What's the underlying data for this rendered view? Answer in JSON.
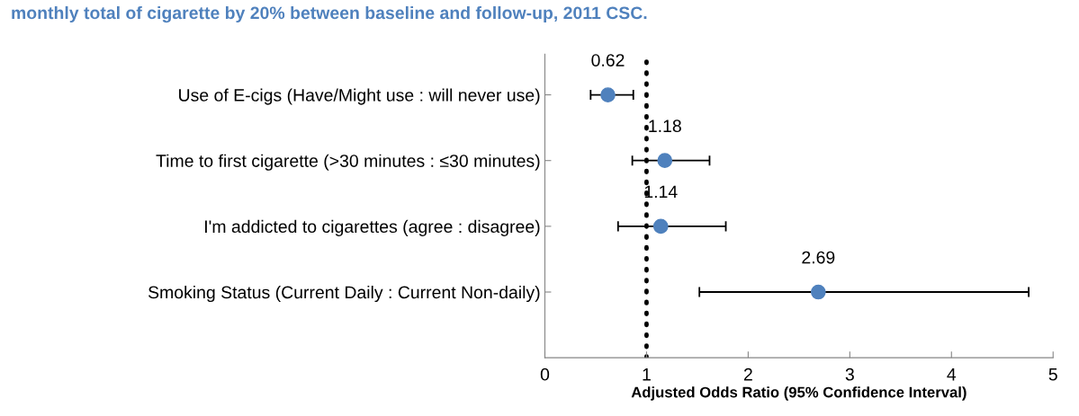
{
  "chart_data": {
    "type": "scatter",
    "orientation": "horizontal",
    "title": "monthly total of cigarette by 20% between baseline and follow-up, 2011 CSC.",
    "xlabel": "Adjusted Odds Ratio (95% Confidence Interval)",
    "categories": [
      "Use of E-cigs (Have/Might use : will never use)",
      "Time to first cigarette (>30 minutes : ≤30 minutes)",
      "I'm addicted to cigarettes (agree : disagree)",
      "Smoking Status (Current Daily : Current Non-daily)"
    ],
    "series": [
      {
        "color": "#4f81bd",
        "values": [
          0.62,
          1.18,
          1.14,
          2.69
        ],
        "errors": [
          [
            0.45,
            0.87
          ],
          [
            0.86,
            1.62
          ],
          [
            0.72,
            1.78
          ],
          [
            1.52,
            4.76
          ]
        ]
      }
    ],
    "xlim": [
      0,
      5
    ],
    "xticks": [
      0,
      1,
      2,
      3,
      4,
      5
    ],
    "ref_lines": [
      {
        "axis": "x",
        "value": 1,
        "color": "#000000",
        "line_style": "dotted"
      }
    ],
    "data_labels": true,
    "marker": "circle",
    "grid": false,
    "legend": false
  }
}
